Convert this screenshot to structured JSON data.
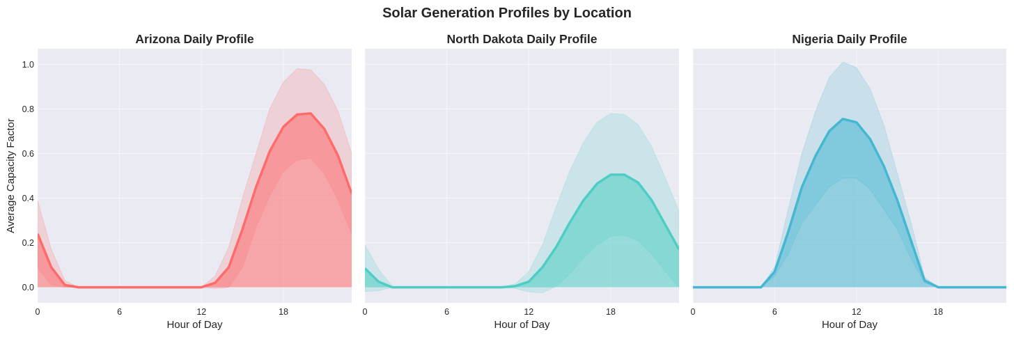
{
  "suptitle": "Solar Generation Profiles by Location",
  "chart_data": [
    {
      "type": "area",
      "title": "Arizona Daily Profile",
      "xlabel": "Hour of Day",
      "ylabel": "Average Capacity Factor",
      "xlim": [
        0,
        23
      ],
      "ylim": [
        -0.07,
        1.07
      ],
      "xticks": [
        "0",
        "6",
        "12",
        "18"
      ],
      "yticks": [
        "0.0",
        "0.2",
        "0.4",
        "0.6",
        "0.8",
        "1.0"
      ],
      "color": "#FF6B6B",
      "x": [
        0,
        1,
        2,
        3,
        4,
        5,
        6,
        7,
        8,
        9,
        10,
        11,
        12,
        13,
        14,
        15,
        16,
        17,
        18,
        19,
        20,
        21,
        22,
        23
      ],
      "mean": [
        0.24,
        0.09,
        0.01,
        0,
        0,
        0,
        0,
        0,
        0,
        0,
        0,
        0,
        0,
        0.02,
        0.09,
        0.26,
        0.45,
        0.61,
        0.72,
        0.775,
        0.78,
        0.71,
        0.59,
        0.42
      ],
      "upper": [
        0.39,
        0.17,
        0.03,
        0,
        0,
        0,
        0,
        0,
        0,
        0,
        0,
        0,
        0,
        0.05,
        0.18,
        0.4,
        0.6,
        0.8,
        0.92,
        0.98,
        0.975,
        0.91,
        0.79,
        0.6
      ],
      "lower": [
        0.09,
        0.01,
        0,
        0,
        0,
        0,
        0,
        0,
        0,
        0,
        0,
        0,
        0,
        -0.005,
        0,
        0.09,
        0.27,
        0.41,
        0.52,
        0.57,
        0.58,
        0.51,
        0.39,
        0.24
      ]
    },
    {
      "type": "area",
      "title": "North Dakota Daily Profile",
      "xlabel": "Hour of Day",
      "ylabel": "",
      "xlim": [
        0,
        23
      ],
      "ylim": [
        -0.07,
        1.07
      ],
      "xticks": [
        "0",
        "6",
        "12",
        "18"
      ],
      "yticks": [],
      "color": "#4ECDC4",
      "x": [
        0,
        1,
        2,
        3,
        4,
        5,
        6,
        7,
        8,
        9,
        10,
        11,
        12,
        13,
        14,
        15,
        16,
        17,
        18,
        19,
        20,
        21,
        22,
        23
      ],
      "mean": [
        0.085,
        0.025,
        0,
        0,
        0,
        0,
        0,
        0,
        0,
        0,
        0,
        0.005,
        0.025,
        0.09,
        0.18,
        0.29,
        0.39,
        0.465,
        0.505,
        0.505,
        0.47,
        0.39,
        0.28,
        0.17
      ],
      "upper": [
        0.19,
        0.08,
        0.005,
        0,
        0,
        0,
        0,
        0,
        0,
        0,
        0,
        0.015,
        0.07,
        0.19,
        0.36,
        0.52,
        0.65,
        0.74,
        0.78,
        0.775,
        0.73,
        0.63,
        0.49,
        0.34
      ],
      "lower": [
        -0.02,
        -0.015,
        0,
        0,
        0,
        0,
        0,
        0,
        0,
        0,
        0,
        -0.005,
        -0.02,
        -0.025,
        0.005,
        0.06,
        0.13,
        0.19,
        0.23,
        0.235,
        0.21,
        0.15,
        0.07,
        0
      ]
    },
    {
      "type": "area",
      "title": "Nigeria Daily Profile",
      "xlabel": "Hour of Day",
      "ylabel": "",
      "xlim": [
        0,
        23
      ],
      "ylim": [
        -0.07,
        1.07
      ],
      "xticks": [
        "0",
        "6",
        "12",
        "18"
      ],
      "yticks": [],
      "color": "#45B7D1",
      "x": [
        0,
        1,
        2,
        3,
        4,
        5,
        6,
        7,
        8,
        9,
        10,
        11,
        12,
        13,
        14,
        15,
        16,
        17,
        18,
        19,
        20,
        21,
        22,
        23
      ],
      "mean": [
        0,
        0,
        0,
        0,
        0,
        0,
        0.07,
        0.25,
        0.45,
        0.59,
        0.7,
        0.755,
        0.74,
        0.665,
        0.545,
        0.39,
        0.21,
        0.03,
        0,
        0,
        0,
        0,
        0,
        0
      ],
      "upper": [
        0,
        0,
        0,
        0,
        0,
        0,
        0.09,
        0.35,
        0.6,
        0.79,
        0.94,
        1.01,
        0.985,
        0.89,
        0.73,
        0.51,
        0.29,
        0.045,
        0,
        0,
        0,
        0,
        0,
        0
      ],
      "lower": [
        0,
        0,
        0,
        0,
        0,
        0,
        0.05,
        0.15,
        0.29,
        0.37,
        0.45,
        0.49,
        0.49,
        0.44,
        0.35,
        0.26,
        0.13,
        0.02,
        0,
        0,
        0,
        0,
        0,
        0
      ]
    }
  ]
}
